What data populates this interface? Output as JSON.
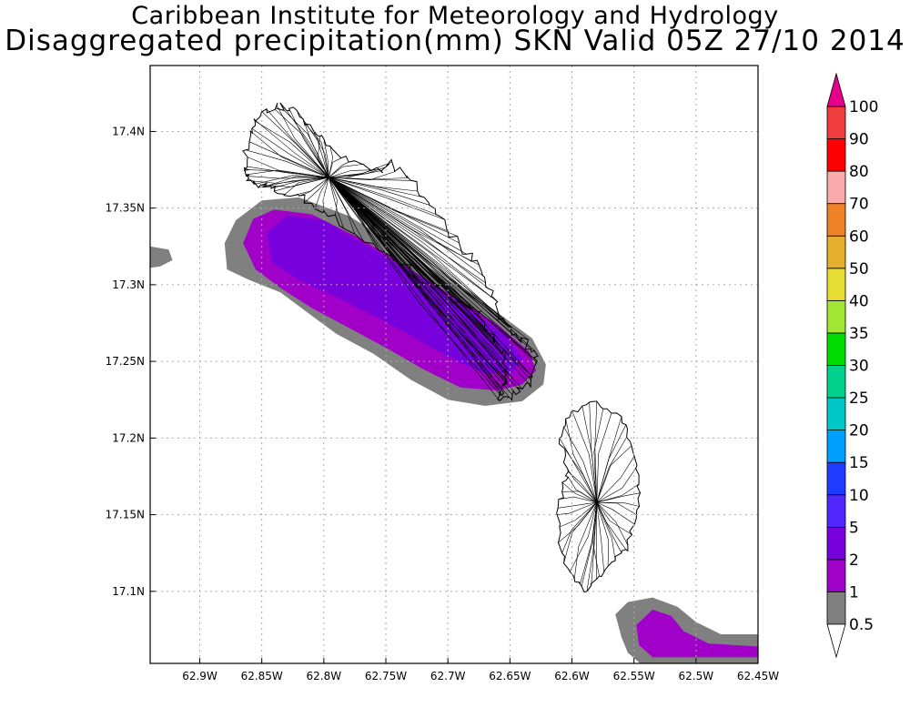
{
  "header": {
    "title": "Caribbean Institute for Meteorology and Hydrology",
    "subtitle": "Disaggregated precipitation(mm) SKN Valid 05Z 27/10 2014"
  },
  "map": {
    "lon_range": [
      -62.94,
      -62.45
    ],
    "lat_range": [
      17.053,
      17.443
    ],
    "lat_ticks": [
      {
        "value": 17.4,
        "label": "17.4N"
      },
      {
        "value": 17.35,
        "label": "17.35N"
      },
      {
        "value": 17.3,
        "label": "17.3N"
      },
      {
        "value": 17.25,
        "label": "17.25N"
      },
      {
        "value": 17.2,
        "label": "17.2N"
      },
      {
        "value": 17.15,
        "label": "17.15N"
      },
      {
        "value": 17.1,
        "label": "17.1N"
      }
    ],
    "lon_ticks": [
      {
        "value": -62.9,
        "label": "62.9W"
      },
      {
        "value": -62.85,
        "label": "62.85W"
      },
      {
        "value": -62.8,
        "label": "62.8W"
      },
      {
        "value": -62.75,
        "label": "62.75W"
      },
      {
        "value": -62.7,
        "label": "62.7W"
      },
      {
        "value": -62.65,
        "label": "62.65W"
      },
      {
        "value": -62.6,
        "label": "62.6W"
      },
      {
        "value": -62.55,
        "label": "62.55W"
      },
      {
        "value": -62.5,
        "label": "62.5W"
      },
      {
        "value": -62.45,
        "label": "62.45W"
      }
    ],
    "grid": true,
    "precip_areas": [
      {
        "class_low": 0.5,
        "color": "#808080",
        "region": [
          [
            -62.94,
            17.325
          ],
          [
            -62.925,
            17.323
          ],
          [
            -62.922,
            17.316
          ],
          [
            -62.932,
            17.312
          ],
          [
            -62.94,
            17.311
          ]
        ]
      },
      {
        "class_low": 0.5,
        "color": "#808080",
        "region": [
          [
            -62.88,
            17.327
          ],
          [
            -62.871,
            17.342
          ],
          [
            -62.85,
            17.355
          ],
          [
            -62.82,
            17.357
          ],
          [
            -62.78,
            17.345
          ],
          [
            -62.74,
            17.325
          ],
          [
            -62.7,
            17.303
          ],
          [
            -62.665,
            17.285
          ],
          [
            -62.632,
            17.265
          ],
          [
            -62.621,
            17.248
          ],
          [
            -62.623,
            17.235
          ],
          [
            -62.64,
            17.224
          ],
          [
            -62.67,
            17.221
          ],
          [
            -62.7,
            17.225
          ],
          [
            -62.73,
            17.238
          ],
          [
            -62.76,
            17.255
          ],
          [
            -62.79,
            17.268
          ],
          [
            -62.81,
            17.28
          ],
          [
            -62.835,
            17.295
          ],
          [
            -62.86,
            17.303
          ],
          [
            -62.878,
            17.31
          ]
        ]
      },
      {
        "class_low": 1,
        "color": "#a000c8",
        "region": [
          [
            -62.865,
            17.327
          ],
          [
            -62.857,
            17.343
          ],
          [
            -62.84,
            17.349
          ],
          [
            -62.81,
            17.346
          ],
          [
            -62.77,
            17.33
          ],
          [
            -62.73,
            17.31
          ],
          [
            -62.69,
            17.29
          ],
          [
            -62.66,
            17.274
          ],
          [
            -62.634,
            17.256
          ],
          [
            -62.629,
            17.244
          ],
          [
            -62.64,
            17.235
          ],
          [
            -62.66,
            17.231
          ],
          [
            -62.69,
            17.233
          ],
          [
            -62.72,
            17.245
          ],
          [
            -62.75,
            17.259
          ],
          [
            -62.78,
            17.272
          ],
          [
            -62.81,
            17.285
          ],
          [
            -62.835,
            17.298
          ],
          [
            -62.855,
            17.31
          ]
        ]
      },
      {
        "class_low": 2,
        "color": "#7800dc",
        "region": [
          [
            -62.846,
            17.334
          ],
          [
            -62.83,
            17.345
          ],
          [
            -62.8,
            17.342
          ],
          [
            -62.76,
            17.323
          ],
          [
            -62.72,
            17.304
          ],
          [
            -62.685,
            17.285
          ],
          [
            -62.655,
            17.268
          ],
          [
            -62.64,
            17.252
          ],
          [
            -62.648,
            17.243
          ],
          [
            -62.67,
            17.242
          ],
          [
            -62.7,
            17.253
          ],
          [
            -62.73,
            17.267
          ],
          [
            -62.76,
            17.28
          ],
          [
            -62.79,
            17.292
          ],
          [
            -62.82,
            17.303
          ],
          [
            -62.842,
            17.315
          ]
        ]
      },
      {
        "class_low": 0.5,
        "color": "#808080",
        "region": [
          [
            -62.565,
            17.085
          ],
          [
            -62.56,
            17.07
          ],
          [
            -62.555,
            17.06
          ],
          [
            -62.545,
            17.053
          ],
          [
            -62.45,
            17.053
          ],
          [
            -62.45,
            17.072
          ],
          [
            -62.48,
            17.072
          ],
          [
            -62.5,
            17.08
          ],
          [
            -62.515,
            17.09
          ],
          [
            -62.535,
            17.096
          ],
          [
            -62.555,
            17.093
          ]
        ]
      },
      {
        "class_low": 1,
        "color": "#a000c8",
        "region": [
          [
            -62.548,
            17.078
          ],
          [
            -62.546,
            17.065
          ],
          [
            -62.535,
            17.057
          ],
          [
            -62.45,
            17.057
          ],
          [
            -62.45,
            17.064
          ],
          [
            -62.49,
            17.066
          ],
          [
            -62.51,
            17.074
          ],
          [
            -62.52,
            17.084
          ],
          [
            -62.535,
            17.088
          ]
        ]
      }
    ],
    "islands": [
      {
        "outline": [
          [
            -62.861,
            17.375
          ],
          [
            -62.862,
            17.368
          ],
          [
            -62.85,
            17.365
          ],
          [
            -62.84,
            17.361
          ],
          [
            -62.82,
            17.358
          ],
          [
            -62.8,
            17.348
          ],
          [
            -62.775,
            17.333
          ],
          [
            -62.755,
            17.322
          ],
          [
            -62.735,
            17.313
          ],
          [
            -62.715,
            17.3
          ],
          [
            -62.7,
            17.295
          ],
          [
            -62.688,
            17.288
          ],
          [
            -62.676,
            17.282
          ],
          [
            -62.668,
            17.27
          ],
          [
            -62.66,
            17.262
          ],
          [
            -62.655,
            17.25
          ],
          [
            -62.653,
            17.238
          ],
          [
            -62.657,
            17.232
          ],
          [
            -62.66,
            17.226
          ],
          [
            -62.648,
            17.228
          ],
          [
            -62.64,
            17.232
          ],
          [
            -62.632,
            17.24
          ],
          [
            -62.628,
            17.25
          ],
          [
            -62.633,
            17.258
          ],
          [
            -62.645,
            17.268
          ],
          [
            -62.655,
            17.278
          ],
          [
            -62.665,
            17.292
          ],
          [
            -62.672,
            17.306
          ],
          [
            -62.685,
            17.32
          ],
          [
            -62.7,
            17.335
          ],
          [
            -62.715,
            17.352
          ],
          [
            -62.73,
            17.368
          ],
          [
            -62.745,
            17.38
          ],
          [
            -62.755,
            17.375
          ],
          [
            -62.78,
            17.38
          ],
          [
            -62.8,
            17.395
          ],
          [
            -62.815,
            17.405
          ],
          [
            -62.828,
            17.415
          ],
          [
            -62.838,
            17.417
          ],
          [
            -62.85,
            17.413
          ],
          [
            -62.858,
            17.402
          ],
          [
            -62.863,
            17.388
          ]
        ],
        "hub": [
          -62.796,
          17.37
        ],
        "coastline_detail": 0.003
      },
      {
        "outline": [
          [
            -62.603,
            17.178
          ],
          [
            -62.61,
            17.2
          ],
          [
            -62.6,
            17.218
          ],
          [
            -62.58,
            17.224
          ],
          [
            -62.56,
            17.214
          ],
          [
            -62.552,
            17.195
          ],
          [
            -62.546,
            17.17
          ],
          [
            -62.548,
            17.15
          ],
          [
            -62.555,
            17.13
          ],
          [
            -62.565,
            17.12
          ],
          [
            -62.578,
            17.11
          ],
          [
            -62.588,
            17.1
          ],
          [
            -62.598,
            17.108
          ],
          [
            -62.608,
            17.125
          ],
          [
            -62.612,
            17.15
          ],
          [
            -62.608,
            17.165
          ]
        ],
        "hub": [
          -62.58,
          17.158
        ],
        "coastline_detail": 0.002
      }
    ]
  },
  "colorbar": {
    "top_triangle_color": "#e6008c",
    "bottom_triangle_color": "#ffffff",
    "bins": [
      {
        "color": "#808080",
        "label": "0.5"
      },
      {
        "color": "#a000c8",
        "label": "1"
      },
      {
        "color": "#7800dc",
        "label": "2"
      },
      {
        "color": "#5028ff",
        "label": "5"
      },
      {
        "color": "#1e3cff",
        "label": "10"
      },
      {
        "color": "#00a0ff",
        "label": "15"
      },
      {
        "color": "#00c8c8",
        "label": "20"
      },
      {
        "color": "#00d28c",
        "label": "25"
      },
      {
        "color": "#00dc00",
        "label": "30"
      },
      {
        "color": "#a0e632",
        "label": "35"
      },
      {
        "color": "#e6dc32",
        "label": "40"
      },
      {
        "color": "#e6af2d",
        "label": "50"
      },
      {
        "color": "#f08228",
        "label": "60"
      },
      {
        "color": "#faaaaa",
        "label": "70"
      },
      {
        "color": "#ff0000",
        "label": "80"
      },
      {
        "color": "#f03c3c",
        "label": "90"
      }
    ],
    "top_label": "100"
  }
}
